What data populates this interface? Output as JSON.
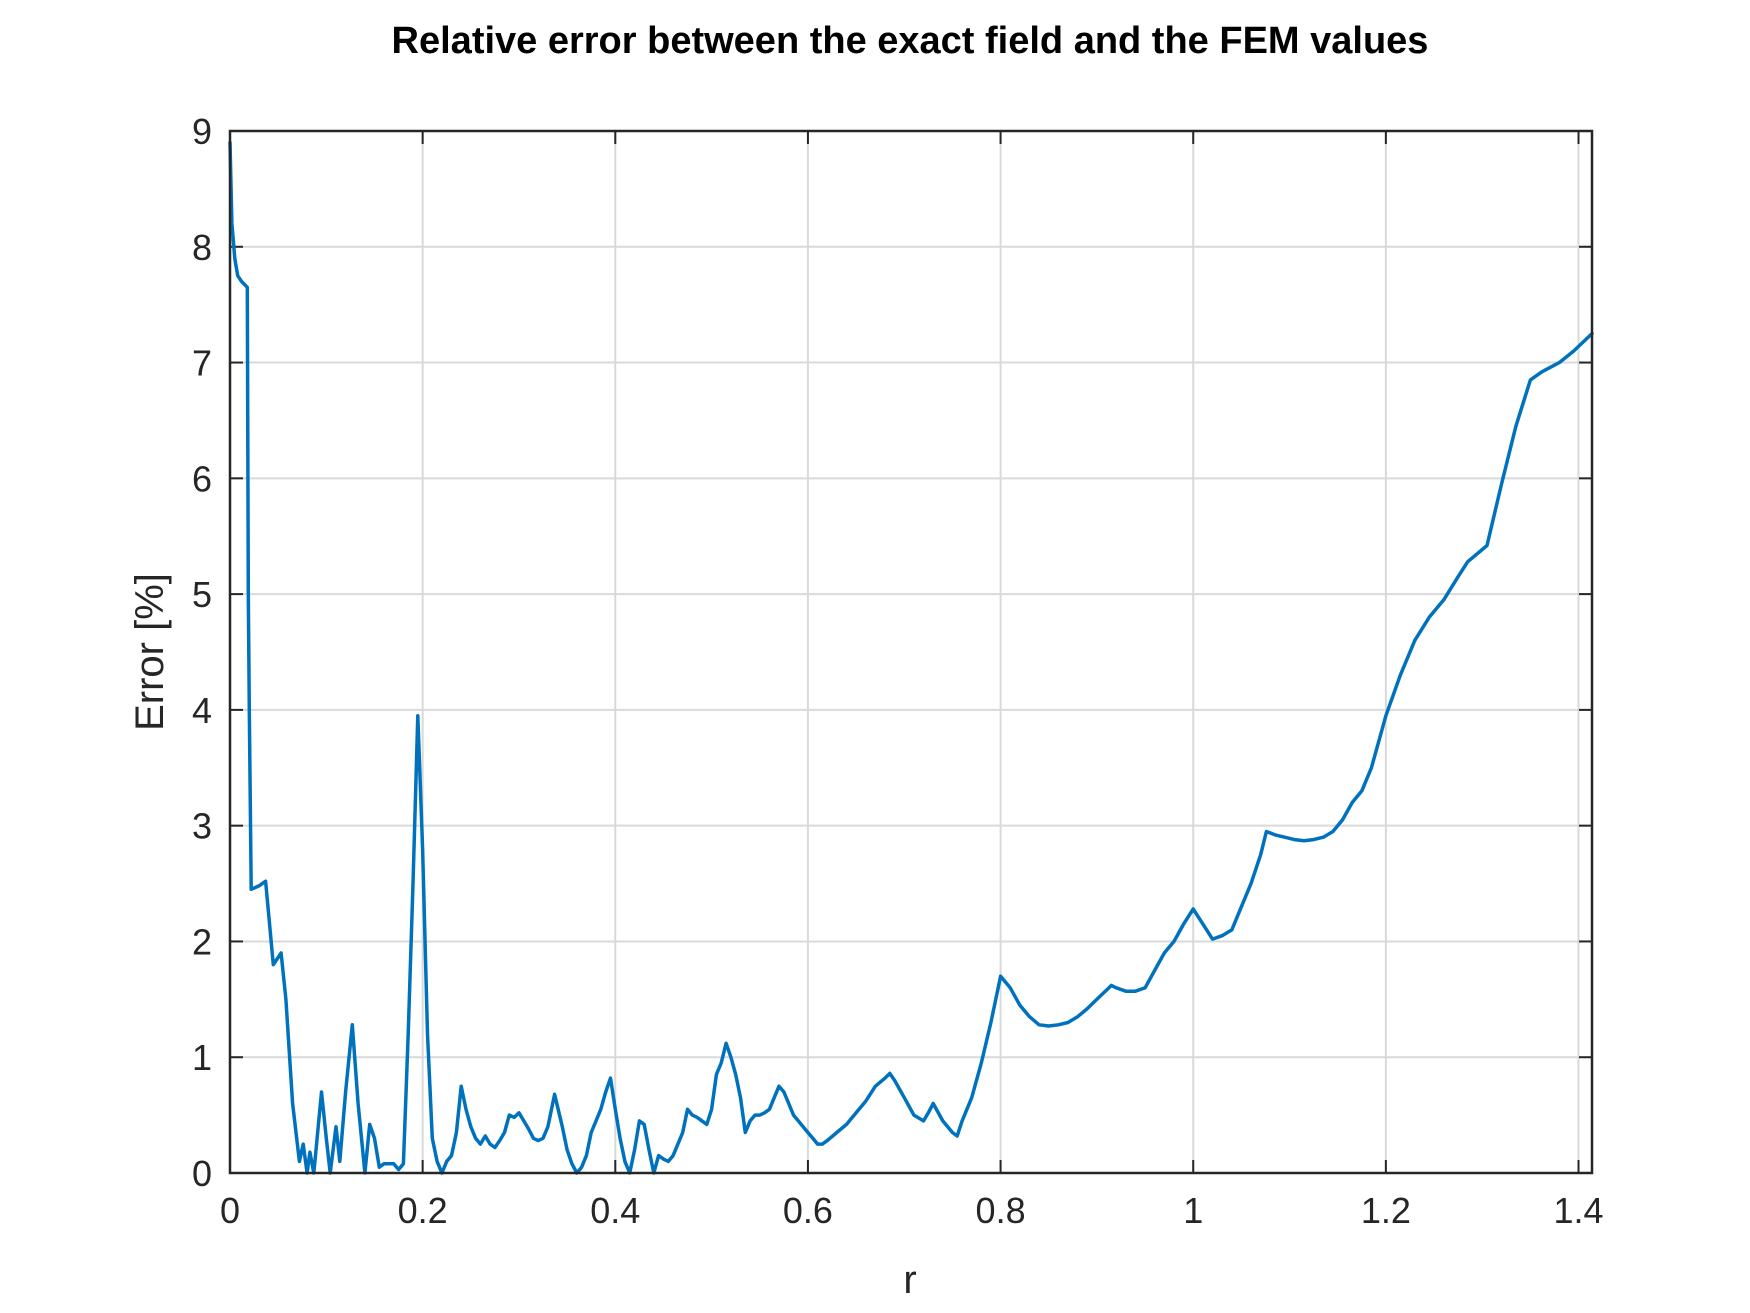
{
  "chart_data": {
    "type": "line",
    "title": "Relative error between the exact field and the FEM values",
    "xlabel": "r",
    "ylabel": "Error [%]",
    "xlim": [
      0,
      1.414
    ],
    "ylim": [
      0,
      9
    ],
    "grid": true,
    "xticks": [
      0,
      0.2,
      0.4,
      0.6,
      0.8,
      1.0,
      1.2,
      1.4
    ],
    "xtick_labels": [
      "0",
      "0.2",
      "0.4",
      "0.6",
      "0.8",
      "1",
      "1.2",
      "1.4"
    ],
    "yticks": [
      0,
      1,
      2,
      3,
      4,
      5,
      6,
      7,
      8,
      9
    ],
    "ytick_labels": [
      "0",
      "1",
      "2",
      "3",
      "4",
      "5",
      "6",
      "7",
      "8",
      "9"
    ],
    "series": [
      {
        "name": "Error",
        "color": "#0072BD",
        "x": [
          0,
          0.002,
          0.005,
          0.008,
          0.012,
          0.018,
          0.019,
          0.02,
          0.022,
          0.03,
          0.037,
          0.045,
          0.053,
          0.058,
          0.065,
          0.072,
          0.076,
          0.08,
          0.083,
          0.087,
          0.095,
          0.1,
          0.104,
          0.11,
          0.114,
          0.12,
          0.127,
          0.133,
          0.14,
          0.145,
          0.15,
          0.155,
          0.16,
          0.17,
          0.175,
          0.18,
          0.185,
          0.19,
          0.195,
          0.2,
          0.205,
          0.21,
          0.215,
          0.22,
          0.225,
          0.23,
          0.235,
          0.24,
          0.245,
          0.25,
          0.255,
          0.26,
          0.265,
          0.27,
          0.275,
          0.28,
          0.285,
          0.29,
          0.295,
          0.3,
          0.305,
          0.31,
          0.315,
          0.32,
          0.325,
          0.33,
          0.337,
          0.345,
          0.35,
          0.355,
          0.36,
          0.365,
          0.37,
          0.375,
          0.38,
          0.385,
          0.39,
          0.395,
          0.4,
          0.405,
          0.41,
          0.415,
          0.42,
          0.425,
          0.43,
          0.435,
          0.44,
          0.445,
          0.45,
          0.455,
          0.46,
          0.465,
          0.47,
          0.475,
          0.48,
          0.485,
          0.49,
          0.495,
          0.5,
          0.505,
          0.51,
          0.515,
          0.52,
          0.525,
          0.53,
          0.535,
          0.54,
          0.545,
          0.55,
          0.555,
          0.56,
          0.565,
          0.57,
          0.575,
          0.58,
          0.585,
          0.59,
          0.595,
          0.6,
          0.605,
          0.61,
          0.615,
          0.62,
          0.63,
          0.64,
          0.65,
          0.66,
          0.67,
          0.68,
          0.685,
          0.69,
          0.7,
          0.71,
          0.72,
          0.725,
          0.73,
          0.74,
          0.75,
          0.755,
          0.76,
          0.77,
          0.78,
          0.79,
          0.8,
          0.81,
          0.82,
          0.83,
          0.84,
          0.85,
          0.86,
          0.87,
          0.88,
          0.89,
          0.9,
          0.91,
          0.915,
          0.92,
          0.93,
          0.94,
          0.95,
          0.96,
          0.97,
          0.98,
          0.99,
          1.0,
          1.01,
          1.02,
          1.03,
          1.04,
          1.05,
          1.06,
          1.07,
          1.076,
          1.085,
          1.095,
          1.105,
          1.115,
          1.125,
          1.135,
          1.145,
          1.155,
          1.165,
          1.175,
          1.185,
          1.2,
          1.215,
          1.23,
          1.245,
          1.26,
          1.275,
          1.285,
          1.295,
          1.305,
          1.32,
          1.335,
          1.35,
          1.362,
          1.38,
          1.395,
          1.414
        ],
        "y": [
          8.9,
          8.2,
          7.9,
          7.75,
          7.7,
          7.65,
          5.0,
          4.0,
          2.45,
          2.48,
          2.52,
          1.8,
          1.9,
          1.5,
          0.6,
          0.1,
          0.25,
          0.0,
          0.18,
          0.0,
          0.7,
          0.3,
          0.0,
          0.4,
          0.1,
          0.7,
          1.28,
          0.6,
          0.0,
          0.42,
          0.3,
          0.05,
          0.08,
          0.08,
          0.03,
          0.08,
          1.2,
          2.5,
          3.95,
          2.8,
          1.2,
          0.3,
          0.1,
          0.0,
          0.1,
          0.15,
          0.35,
          0.75,
          0.55,
          0.4,
          0.3,
          0.25,
          0.32,
          0.25,
          0.22,
          0.28,
          0.35,
          0.5,
          0.48,
          0.52,
          0.45,
          0.38,
          0.3,
          0.28,
          0.3,
          0.4,
          0.68,
          0.4,
          0.2,
          0.08,
          0.0,
          0.05,
          0.15,
          0.35,
          0.45,
          0.55,
          0.7,
          0.82,
          0.55,
          0.3,
          0.1,
          0.0,
          0.2,
          0.45,
          0.42,
          0.2,
          0.0,
          0.15,
          0.12,
          0.1,
          0.15,
          0.25,
          0.35,
          0.55,
          0.5,
          0.48,
          0.45,
          0.42,
          0.55,
          0.85,
          0.95,
          1.12,
          1.0,
          0.85,
          0.65,
          0.35,
          0.45,
          0.5,
          0.5,
          0.52,
          0.55,
          0.65,
          0.75,
          0.7,
          0.6,
          0.5,
          0.45,
          0.4,
          0.35,
          0.3,
          0.25,
          0.25,
          0.28,
          0.35,
          0.42,
          0.52,
          0.62,
          0.75,
          0.82,
          0.86,
          0.8,
          0.65,
          0.5,
          0.45,
          0.52,
          0.6,
          0.45,
          0.35,
          0.32,
          0.45,
          0.65,
          0.95,
          1.3,
          1.7,
          1.6,
          1.45,
          1.35,
          1.28,
          1.27,
          1.28,
          1.3,
          1.35,
          1.42,
          1.5,
          1.58,
          1.62,
          1.6,
          1.57,
          1.57,
          1.6,
          1.75,
          1.9,
          2.0,
          2.15,
          2.28,
          2.15,
          2.02,
          2.05,
          2.1,
          2.3,
          2.5,
          2.75,
          2.95,
          2.92,
          2.9,
          2.88,
          2.87,
          2.88,
          2.9,
          2.95,
          3.05,
          3.2,
          3.3,
          3.5,
          3.95,
          4.3,
          4.6,
          4.8,
          4.95,
          5.15,
          5.28,
          5.35,
          5.42,
          5.95,
          6.45,
          6.85,
          6.92,
          7.0,
          7.1,
          7.25
        ]
      }
    ]
  }
}
